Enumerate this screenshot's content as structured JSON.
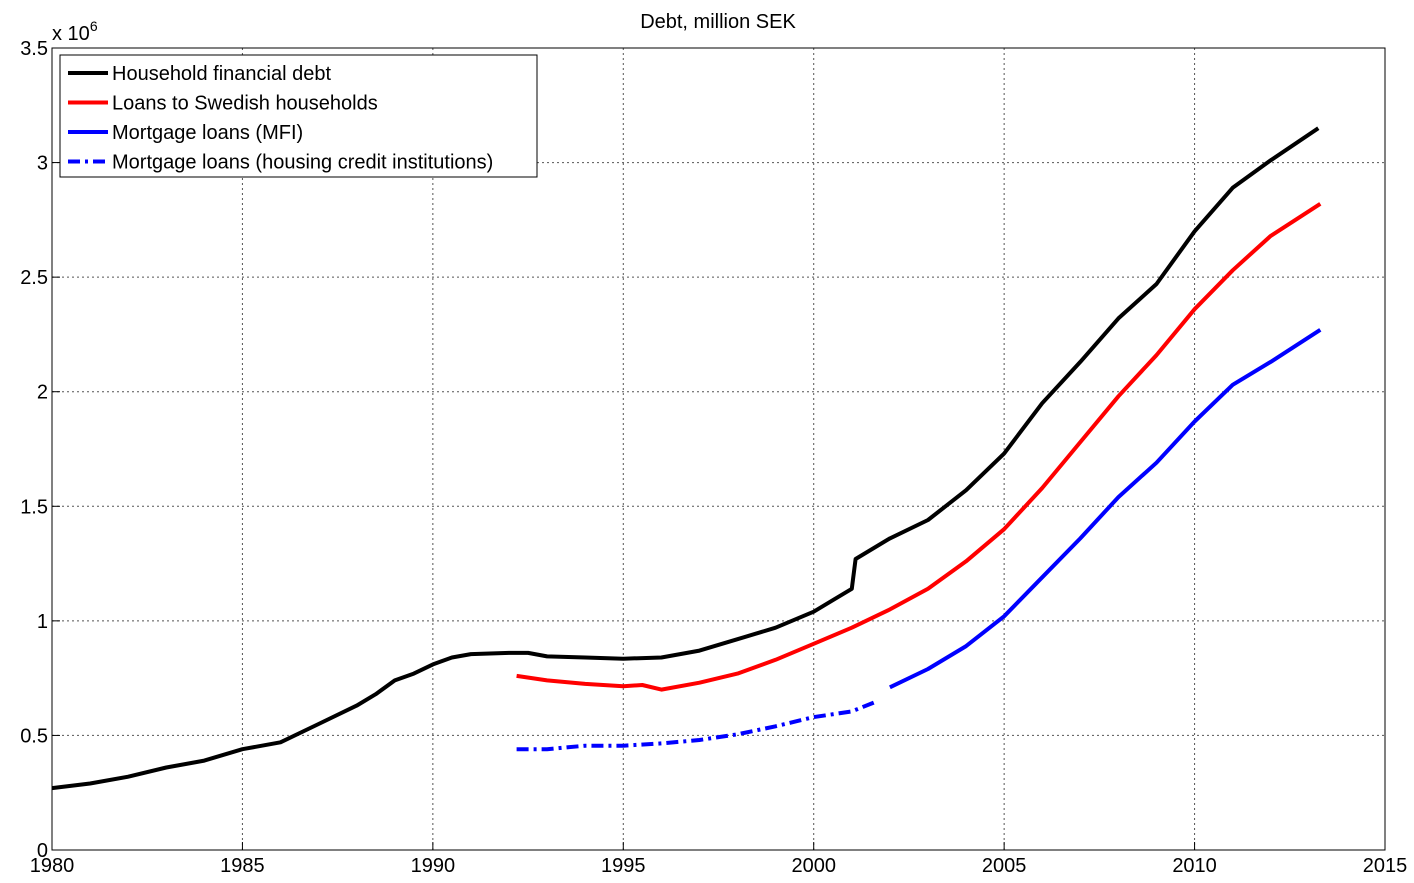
{
  "chart_data": {
    "type": "line",
    "title": "Debt, million SEK",
    "axis_multiplier": {
      "base": "x 10",
      "exponent": "6"
    },
    "xlim": [
      1980,
      2015
    ],
    "xticks": [
      1980,
      1985,
      1990,
      1995,
      2000,
      2005,
      2010,
      2015
    ],
    "ylim": [
      0,
      3.5
    ],
    "yticks": [
      0,
      0.5,
      1,
      1.5,
      2,
      2.5,
      3,
      3.5
    ],
    "grid": true,
    "legend": "upper left",
    "series": [
      {
        "name": "Household financial debt",
        "color": "#000000",
        "dash": false,
        "x": [
          1980,
          1981,
          1982,
          1983,
          1984,
          1985,
          1986,
          1987,
          1988,
          1988.5,
          1989,
          1989.5,
          1990,
          1990.5,
          1991,
          1992,
          1992.5,
          1993,
          1994,
          1995,
          1996,
          1997,
          1998,
          1999,
          2000,
          2000.5,
          2001,
          2001.1,
          2002,
          2003,
          2004,
          2005,
          2006,
          2007,
          2008,
          2009,
          2010,
          2011,
          2012,
          2013.25
        ],
        "values": [
          0.27,
          0.29,
          0.32,
          0.36,
          0.39,
          0.44,
          0.47,
          0.55,
          0.63,
          0.68,
          0.74,
          0.77,
          0.81,
          0.84,
          0.855,
          0.86,
          0.86,
          0.845,
          0.84,
          0.835,
          0.84,
          0.87,
          0.92,
          0.97,
          1.04,
          1.09,
          1.14,
          1.27,
          1.36,
          1.44,
          1.57,
          1.73,
          1.95,
          2.13,
          2.32,
          2.47,
          2.7,
          2.89,
          3.01,
          3.15
        ]
      },
      {
        "name": "Loans to Swedish households",
        "color": "#ff0000",
        "dash": false,
        "x": [
          1992.2,
          1993,
          1994,
          1995,
          1995.5,
          1996,
          1997,
          1998,
          1999,
          2000,
          2001,
          2002,
          2003,
          2004,
          2005,
          2006,
          2007,
          2008,
          2009,
          2010,
          2011,
          2012,
          2013.3
        ],
        "values": [
          0.76,
          0.74,
          0.725,
          0.715,
          0.72,
          0.7,
          0.73,
          0.77,
          0.83,
          0.9,
          0.97,
          1.05,
          1.14,
          1.26,
          1.4,
          1.58,
          1.78,
          1.98,
          2.16,
          2.36,
          2.53,
          2.68,
          2.82
        ]
      },
      {
        "name": "Mortgage loans (MFI)",
        "color": "#0000ff",
        "dash": false,
        "x": [
          2002,
          2003,
          2004,
          2005,
          2006,
          2007,
          2008,
          2009,
          2010,
          2011,
          2012,
          2013.3
        ],
        "values": [
          0.71,
          0.79,
          0.89,
          1.02,
          1.19,
          1.36,
          1.54,
          1.69,
          1.87,
          2.03,
          2.13,
          2.27
        ]
      },
      {
        "name": "Mortgage loans (housing credit institutions)",
        "color": "#0000ff",
        "dash": true,
        "x": [
          1992.2,
          1993,
          1994,
          1995,
          1996,
          1997,
          1998,
          1999,
          2000,
          2001,
          2001.6
        ],
        "values": [
          0.44,
          0.44,
          0.455,
          0.455,
          0.465,
          0.48,
          0.505,
          0.54,
          0.58,
          0.605,
          0.645
        ]
      }
    ]
  }
}
